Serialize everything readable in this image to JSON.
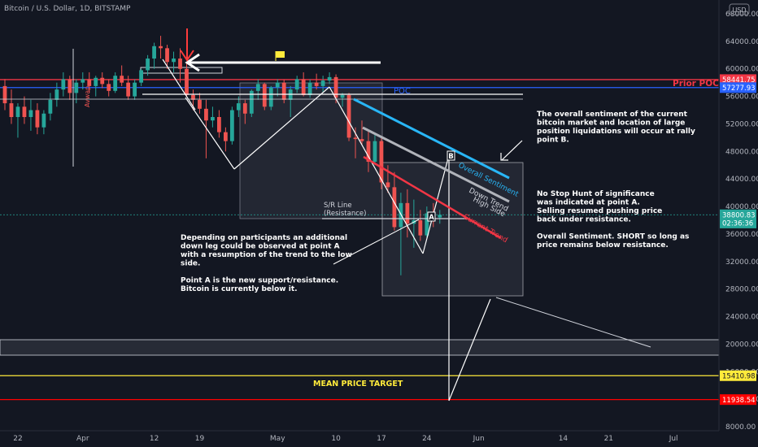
{
  "chart_data": {
    "type": "candlestick",
    "title": "Bitcoin / U.S. Dollar, 1D, BITSTAMP",
    "currency": "USD",
    "y_ticks": [
      8000,
      12000,
      16000,
      20000,
      24000,
      28000,
      32000,
      36000,
      40000,
      44000,
      48000,
      52000,
      56000,
      60000,
      64000,
      68000
    ],
    "y_tick_labels": [
      "8000.00",
      "12000.00",
      "16000.00",
      "20000.00",
      "24000.00",
      "28000.00",
      "32000.00",
      "36000.00",
      "40000.00",
      "44000.00",
      "48000.00",
      "52000.00",
      "56000.00",
      "60000.00",
      "64000.00",
      "68000.00"
    ],
    "ylim": [
      7500,
      70000
    ],
    "x_ticks": [
      {
        "day": -10,
        "label": "22"
      },
      {
        "day": 0,
        "label": "Apr"
      },
      {
        "day": 11,
        "label": "12"
      },
      {
        "day": 18,
        "label": "19"
      },
      {
        "day": 30,
        "label": "May"
      },
      {
        "day": 39,
        "label": "10"
      },
      {
        "day": 46,
        "label": "17"
      },
      {
        "day": 53,
        "label": "24"
      },
      {
        "day": 61,
        "label": "Jun"
      },
      {
        "day": 74,
        "label": "14"
      },
      {
        "day": 81,
        "label": "21"
      },
      {
        "day": 91,
        "label": "Jul"
      }
    ],
    "xlim": [
      -12,
      98
    ],
    "price_tags": [
      {
        "label": "58441.75",
        "value": 58441.75,
        "color": "#f23645"
      },
      {
        "label": "57277.93",
        "value": 57277.93,
        "color": "#2962ff"
      },
      {
        "label": "38800.83",
        "value": 38800.83,
        "color": "#26a69a"
      },
      {
        "label": "02:36:36",
        "value": 37600,
        "color": "#26a69a"
      },
      {
        "label": "15410.98",
        "value": 15410.98,
        "color": "#ffeb3b"
      },
      {
        "label": "11938.54",
        "value": 11938.54,
        "color": "#ff0000"
      }
    ],
    "candles": [
      [
        -12,
        57500,
        58500,
        54000,
        55000
      ],
      [
        -11,
        55000,
        57000,
        52000,
        53000
      ],
      [
        -10,
        53000,
        55000,
        50000,
        54500
      ],
      [
        -9,
        54500,
        56000,
        52000,
        53000
      ],
      [
        -8,
        53000,
        55500,
        51000,
        54000
      ],
      [
        -7,
        54000,
        55000,
        50500,
        51500
      ],
      [
        -6,
        51500,
        54000,
        50500,
        53500
      ],
      [
        -5,
        53500,
        56500,
        52500,
        55500
      ],
      [
        -4,
        55500,
        58000,
        54500,
        57000
      ],
      [
        -3,
        57000,
        59500,
        56000,
        58500
      ],
      [
        -2,
        58500,
        59000,
        55500,
        56500
      ],
      [
        -1,
        56500,
        58500,
        55000,
        58000
      ],
      [
        0,
        58000,
        59500,
        57000,
        58500
      ],
      [
        1,
        58500,
        59500,
        56500,
        57500
      ],
      [
        2,
        57500,
        59000,
        56000,
        58700
      ],
      [
        3,
        58700,
        59500,
        57200,
        57800
      ],
      [
        4,
        57800,
        58500,
        56000,
        56800
      ],
      [
        5,
        56800,
        59500,
        56500,
        59000
      ],
      [
        6,
        59000,
        60500,
        57500,
        58000
      ],
      [
        7,
        58000,
        59000,
        55500,
        56000
      ],
      [
        8,
        56000,
        58500,
        55500,
        58000
      ],
      [
        9,
        58000,
        60000,
        57500,
        59800
      ],
      [
        10,
        59800,
        62000,
        59000,
        61500
      ],
      [
        11,
        61500,
        63800,
        60000,
        63300
      ],
      [
        12,
        63300,
        64800,
        61500,
        63000
      ],
      [
        13,
        63000,
        63500,
        60000,
        61000
      ],
      [
        14,
        61000,
        62500,
        59500,
        61500
      ],
      [
        15,
        61500,
        63000,
        58000,
        60000
      ],
      [
        16,
        60000,
        61000,
        56000,
        56200
      ],
      [
        17,
        56200,
        57000,
        54000,
        55500
      ],
      [
        18,
        55500,
        56500,
        53500,
        54200
      ],
      [
        19,
        54200,
        55500,
        47000,
        52500
      ],
      [
        20,
        52500,
        54500,
        51500,
        53000
      ],
      [
        21,
        53000,
        54000,
        50000,
        50800
      ],
      [
        22,
        50800,
        51500,
        48000,
        49500
      ],
      [
        23,
        49500,
        54500,
        49000,
        54000
      ],
      [
        24,
        54000,
        56000,
        53000,
        55000
      ],
      [
        25,
        55000,
        55500,
        52000,
        53500
      ],
      [
        26,
        53500,
        57000,
        53000,
        56800
      ],
      [
        27,
        56800,
        58500,
        55500,
        57800
      ],
      [
        28,
        57800,
        58000,
        54000,
        54500
      ],
      [
        29,
        54500,
        57500,
        54000,
        57300
      ],
      [
        30,
        57300,
        58500,
        56000,
        58000
      ],
      [
        31,
        58000,
        58400,
        55000,
        55500
      ],
      [
        32,
        55500,
        57500,
        53000,
        57000
      ],
      [
        33,
        57000,
        59000,
        56500,
        58500
      ],
      [
        34,
        58500,
        59500,
        56000,
        56200
      ],
      [
        35,
        56200,
        58500,
        55800,
        58000
      ],
      [
        36,
        58000,
        59300,
        57000,
        57500
      ],
      [
        37,
        57500,
        59000,
        56500,
        58300
      ],
      [
        38,
        58300,
        59500,
        57800,
        58800
      ],
      [
        39,
        58800,
        59200,
        55000,
        55800
      ],
      [
        40,
        55800,
        56500,
        54500,
        56200
      ],
      [
        41,
        56200,
        56500,
        49500,
        50000
      ],
      [
        42,
        50000,
        51500,
        47000,
        49800
      ],
      [
        43,
        49800,
        52500,
        49000,
        49500
      ],
      [
        44,
        49500,
        51000,
        45000,
        46500
      ],
      [
        45,
        46500,
        50500,
        46000,
        49500
      ],
      [
        46,
        49500,
        50000,
        42500,
        43500
      ],
      [
        47,
        43500,
        46000,
        42000,
        42800
      ],
      [
        48,
        42800,
        45000,
        36500,
        37000
      ],
      [
        49,
        37000,
        42000,
        30000,
        40500
      ],
      [
        50,
        40500,
        42500,
        35500,
        37500
      ],
      [
        51,
        37500,
        41000,
        34000,
        38000
      ],
      [
        52,
        38000,
        39500,
        35000,
        35800
      ],
      [
        53,
        35800,
        40000,
        35500,
        39000
      ],
      [
        54,
        39000,
        40500,
        37000,
        38400
      ],
      [
        55,
        38400,
        39500,
        37500,
        38800
      ]
    ],
    "levels": [
      {
        "name": "prior-poc-line",
        "value": 58441.75,
        "color": "#f23645",
        "x0": -12,
        "x1": 98
      },
      {
        "name": "blue-level-line",
        "value": 57277.93,
        "color": "#2962ff",
        "x0": -12,
        "x1": 98
      },
      {
        "name": "last-price-line",
        "value": 38800.83,
        "color": "#26a69a",
        "x0": -12,
        "x1": 98
      },
      {
        "name": "mean-target-line",
        "value": 15410.98,
        "color": "#ffeb3b",
        "x0": -12,
        "x1": 98
      },
      {
        "name": "low-target-line",
        "value": 11938.54,
        "color": "#ff0000",
        "x0": -12,
        "x1": 98
      }
    ],
    "labels": {
      "prior_poc": "Prior POC",
      "poc": "POC",
      "mean_target": "MEAN PRICE TARGET",
      "sr_line_1": "S/R Line",
      "sr_line_2": "(Resistance)",
      "overall_sentiment": "Overall Sentiment",
      "down_trend_1": "Down Trend",
      "down_trend_2": "High Side",
      "current_trend": "Current Trend",
      "point_a": "A",
      "point_b": "B",
      "avwap": "Avwap"
    },
    "notes": {
      "top_right": [
        "The overall sentiment of the current",
        "bitcoin market and location of large",
        "position liquidations will occur at rally",
        "point B."
      ],
      "mid_right": [
        "No Stop Hunt of significance",
        "was indicated at point A.",
        "Selling resumed pushing price",
        "back under resistance.",
        "",
        "Overall Sentiment. SHORT so long as",
        "price remains below resistance."
      ],
      "left": [
        "Depending on participants an additional",
        "down leg could be observed at point A",
        "with a resumption of the trend to the low",
        "side.",
        "",
        "Point A is the new support/resistance.",
        "Bitcoin is currently below it."
      ]
    }
  }
}
